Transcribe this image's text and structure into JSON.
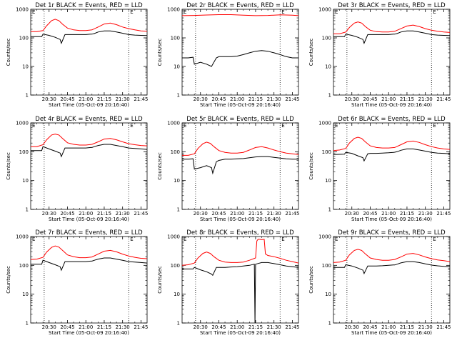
{
  "figure": {
    "ylabel": "Counts/sec",
    "xlabel": "Start Time (05-Oct-09 20:16:40)",
    "x_tick_labels": [
      "20:30",
      "20:45",
      "21:00",
      "21:15",
      "21:30",
      "21:45"
    ],
    "y_tick_labels": [
      "1",
      "10",
      "100",
      "1000"
    ],
    "marker_label": "E",
    "colors": {
      "events": "#000000",
      "lld": "#ff0000"
    }
  },
  "chart_data": [
    {
      "title": "Det 1r BLACK = Events, RED = LLD",
      "type": "line",
      "x_unit": "minutes after start",
      "xlim": [
        0,
        95
      ],
      "yscale": "log",
      "ylim": [
        1,
        1000
      ],
      "vlines": [
        11,
        80
      ],
      "series": [
        {
          "name": "Events",
          "color": "#000000",
          "x": [
            0,
            9,
            10,
            15,
            20,
            24,
            25,
            28,
            30,
            35,
            40,
            45,
            49,
            50,
            52,
            55,
            60,
            65,
            70,
            75,
            80,
            85,
            90,
            95
          ],
          "y": [
            110,
            110,
            135,
            122,
            105,
            88,
            65,
            130,
            130,
            130,
            130,
            130,
            135,
            135,
            142,
            160,
            175,
            175,
            160,
            145,
            130,
            125,
            122,
            120
          ]
        },
        {
          "name": "LLD",
          "color": "#ff0000",
          "x": [
            0,
            5,
            10,
            13,
            17,
            20,
            23,
            26,
            30,
            35,
            40,
            45,
            50,
            55,
            60,
            65,
            70,
            75,
            80,
            85,
            90,
            95
          ],
          "y": [
            165,
            165,
            180,
            265,
            400,
            450,
            400,
            300,
            220,
            190,
            180,
            180,
            190,
            240,
            305,
            330,
            290,
            240,
            210,
            190,
            175,
            170
          ]
        }
      ]
    },
    {
      "title": "Det 2r BLACK = Events, RED = LLD",
      "type": "line",
      "x_unit": "minutes after start",
      "xlim": [
        0,
        95
      ],
      "yscale": "log",
      "ylim": [
        1,
        1000
      ],
      "vlines": [
        11,
        80
      ],
      "series": [
        {
          "name": "Events",
          "color": "#000000",
          "x": [
            0,
            5,
            9,
            10,
            15,
            20,
            24,
            28,
            30,
            35,
            40,
            45,
            50,
            55,
            60,
            65,
            70,
            75,
            80,
            85,
            90,
            95
          ],
          "y": [
            20,
            20,
            21,
            12,
            14,
            12,
            10,
            20,
            22,
            22,
            22,
            23,
            26,
            30,
            34,
            36,
            34,
            30,
            26,
            22,
            20,
            20
          ]
        },
        {
          "name": "LLD",
          "color": "#ff0000",
          "x": [
            0,
            10,
            20,
            30,
            40,
            50,
            60,
            70,
            80,
            90,
            95
          ],
          "y": [
            600,
            610,
            630,
            650,
            650,
            620,
            600,
            610,
            640,
            620,
            600
          ]
        }
      ]
    },
    {
      "title": "Det 3r BLACK = Events, RED = LLD",
      "type": "line",
      "x_unit": "minutes after start",
      "xlim": [
        0,
        95
      ],
      "yscale": "log",
      "ylim": [
        1,
        1000
      ],
      "vlines": [
        11,
        80
      ],
      "series": [
        {
          "name": "Events",
          "color": "#000000",
          "x": [
            0,
            9,
            10,
            15,
            20,
            24,
            25,
            28,
            30,
            35,
            40,
            45,
            49,
            50,
            52,
            55,
            60,
            65,
            70,
            75,
            80,
            85,
            90,
            95
          ],
          "y": [
            110,
            110,
            135,
            122,
            105,
            88,
            65,
            130,
            130,
            130,
            130,
            130,
            135,
            135,
            142,
            160,
            175,
            175,
            160,
            145,
            130,
            125,
            122,
            120
          ]
        },
        {
          "name": "LLD",
          "color": "#ff0000",
          "x": [
            0,
            5,
            10,
            13,
            17,
            20,
            23,
            26,
            30,
            35,
            40,
            45,
            50,
            55,
            60,
            65,
            70,
            75,
            80,
            85,
            90,
            95
          ],
          "y": [
            140,
            140,
            160,
            230,
            330,
            360,
            330,
            250,
            185,
            165,
            160,
            160,
            170,
            210,
            260,
            280,
            250,
            210,
            185,
            170,
            160,
            155
          ]
        }
      ]
    },
    {
      "title": "Det 4r BLACK = Events, RED = LLD",
      "type": "line",
      "x_unit": "minutes after start",
      "xlim": [
        0,
        95
      ],
      "yscale": "log",
      "ylim": [
        1,
        1000
      ],
      "vlines": [
        11,
        80
      ],
      "series": [
        {
          "name": "Events",
          "color": "#000000",
          "x": [
            0,
            9,
            10,
            15,
            20,
            24,
            25,
            28,
            30,
            35,
            40,
            45,
            49,
            50,
            52,
            55,
            60,
            65,
            70,
            75,
            80,
            85,
            90,
            95
          ],
          "y": [
            110,
            110,
            150,
            125,
            105,
            90,
            68,
            135,
            135,
            135,
            135,
            135,
            140,
            140,
            150,
            165,
            180,
            180,
            165,
            150,
            135,
            130,
            125,
            120
          ]
        },
        {
          "name": "LLD",
          "color": "#ff0000",
          "x": [
            0,
            5,
            10,
            13,
            17,
            20,
            23,
            26,
            30,
            35,
            40,
            45,
            50,
            55,
            60,
            65,
            70,
            75,
            80,
            85,
            90,
            95
          ],
          "y": [
            150,
            150,
            175,
            260,
            380,
            410,
            380,
            290,
            205,
            180,
            170,
            170,
            180,
            220,
            275,
            290,
            260,
            220,
            190,
            175,
            165,
            160
          ]
        }
      ]
    },
    {
      "title": "Det 5r BLACK = Events, RED = LLD",
      "type": "line",
      "x_unit": "minutes after start",
      "xlim": [
        0,
        95
      ],
      "yscale": "log",
      "ylim": [
        1,
        1000
      ],
      "vlines": [
        11,
        80
      ],
      "series": [
        {
          "name": "Events",
          "color": "#000000",
          "x": [
            0,
            5,
            9,
            10,
            15,
            20,
            24,
            25,
            28,
            30,
            35,
            40,
            45,
            50,
            55,
            60,
            65,
            70,
            75,
            80,
            85,
            90,
            95
          ],
          "y": [
            55,
            55,
            57,
            25,
            28,
            33,
            28,
            18,
            45,
            50,
            55,
            55,
            57,
            58,
            62,
            66,
            68,
            68,
            64,
            60,
            57,
            55,
            55
          ]
        },
        {
          "name": "LLD",
          "color": "#ff0000",
          "x": [
            0,
            5,
            10,
            13,
            17,
            20,
            23,
            26,
            30,
            35,
            40,
            45,
            50,
            55,
            60,
            65,
            70,
            75,
            80,
            85,
            90,
            95
          ],
          "y": [
            75,
            75,
            85,
            130,
            190,
            215,
            195,
            150,
            110,
            95,
            90,
            90,
            95,
            115,
            140,
            150,
            135,
            115,
            100,
            90,
            85,
            80
          ]
        }
      ]
    },
    {
      "title": "Det 6r BLACK = Events, RED = LLD",
      "type": "line",
      "x_unit": "minutes after start",
      "xlim": [
        0,
        95
      ],
      "yscale": "log",
      "ylim": [
        1,
        1000
      ],
      "vlines": [
        11,
        80
      ],
      "series": [
        {
          "name": "Events",
          "color": "#000000",
          "x": [
            0,
            9,
            10,
            15,
            20,
            24,
            25,
            28,
            30,
            35,
            40,
            45,
            49,
            50,
            52,
            55,
            60,
            65,
            70,
            75,
            80,
            85,
            90,
            95
          ],
          "y": [
            80,
            82,
            95,
            88,
            72,
            62,
            48,
            85,
            88,
            88,
            90,
            92,
            95,
            96,
            100,
            112,
            125,
            125,
            115,
            105,
            95,
            90,
            88,
            85
          ]
        },
        {
          "name": "LLD",
          "color": "#ff0000",
          "x": [
            0,
            5,
            10,
            13,
            17,
            20,
            23,
            26,
            30,
            35,
            40,
            45,
            50,
            55,
            60,
            65,
            70,
            75,
            80,
            85,
            90,
            95
          ],
          "y": [
            110,
            115,
            130,
            200,
            290,
            320,
            290,
            220,
            160,
            140,
            135,
            135,
            140,
            175,
            220,
            235,
            210,
            175,
            150,
            135,
            125,
            120
          ]
        }
      ]
    },
    {
      "title": "Det 7r BLACK = Events, RED = LLD",
      "type": "line",
      "x_unit": "minutes after start",
      "xlim": [
        0,
        95
      ],
      "yscale": "log",
      "ylim": [
        1,
        1000
      ],
      "vlines": [
        11,
        80
      ],
      "series": [
        {
          "name": "Events",
          "color": "#000000",
          "x": [
            0,
            9,
            10,
            15,
            20,
            24,
            25,
            28,
            30,
            35,
            40,
            45,
            49,
            50,
            52,
            55,
            60,
            65,
            70,
            75,
            80,
            85,
            90,
            95
          ],
          "y": [
            110,
            110,
            150,
            125,
            105,
            90,
            68,
            135,
            135,
            135,
            135,
            135,
            140,
            140,
            150,
            165,
            180,
            180,
            165,
            150,
            135,
            130,
            125,
            120
          ]
        },
        {
          "name": "LLD",
          "color": "#ff0000",
          "x": [
            0,
            5,
            10,
            13,
            17,
            20,
            23,
            26,
            30,
            35,
            40,
            45,
            50,
            55,
            60,
            65,
            70,
            75,
            80,
            85,
            90,
            95
          ],
          "y": [
            160,
            165,
            190,
            290,
            420,
            470,
            430,
            330,
            230,
            200,
            185,
            185,
            195,
            245,
            310,
            330,
            295,
            245,
            210,
            190,
            175,
            170
          ]
        }
      ]
    },
    {
      "title": "Det 8r BLACK = Events, RED = LLD",
      "type": "line",
      "x_unit": "minutes after start",
      "xlim": [
        0,
        95
      ],
      "yscale": "log",
      "ylim": [
        1,
        1000
      ],
      "vlines": [
        11,
        80
      ],
      "series": [
        {
          "name": "Events",
          "color": "#000000",
          "x": [
            0,
            9,
            10,
            15,
            20,
            24,
            25,
            28,
            30,
            35,
            40,
            45,
            50,
            55,
            59,
            59.5,
            60,
            65,
            70,
            75,
            80,
            85,
            90,
            95
          ],
          "y": [
            75,
            75,
            85,
            70,
            60,
            50,
            45,
            85,
            85,
            85,
            88,
            90,
            95,
            100,
            110,
            1,
            110,
            125,
            125,
            115,
            105,
            95,
            90,
            85
          ]
        },
        {
          "name": "LLD",
          "color": "#ff0000",
          "x": [
            0,
            5,
            10,
            13,
            17,
            20,
            23,
            26,
            30,
            35,
            40,
            45,
            50,
            55,
            60,
            61,
            62,
            63,
            65,
            67,
            68,
            70,
            75,
            80,
            85,
            90,
            95
          ],
          "y": [
            100,
            105,
            120,
            180,
            260,
            290,
            260,
            200,
            150,
            130,
            125,
            125,
            130,
            150,
            180,
            700,
            800,
            800,
            780,
            800,
            250,
            220,
            200,
            175,
            150,
            135,
            120
          ]
        }
      ]
    },
    {
      "title": "Det 9r BLACK = Events, RED = LLD",
      "type": "line",
      "x_unit": "minutes after start",
      "xlim": [
        0,
        95
      ],
      "yscale": "log",
      "ylim": [
        1,
        1000
      ],
      "vlines": [
        11,
        80
      ],
      "series": [
        {
          "name": "Events",
          "color": "#000000",
          "x": [
            0,
            9,
            10,
            15,
            20,
            24,
            25,
            28,
            30,
            35,
            40,
            45,
            49,
            50,
            52,
            55,
            60,
            65,
            70,
            75,
            80,
            85,
            90,
            95
          ],
          "y": [
            85,
            85,
            105,
            95,
            80,
            68,
            52,
            95,
            95,
            95,
            97,
            100,
            103,
            103,
            110,
            122,
            135,
            135,
            125,
            112,
            102,
            96,
            92,
            90
          ]
        },
        {
          "name": "LLD",
          "color": "#ff0000",
          "x": [
            0,
            5,
            10,
            13,
            17,
            20,
            23,
            26,
            30,
            35,
            40,
            45,
            50,
            55,
            60,
            65,
            70,
            75,
            80,
            85,
            90,
            95
          ],
          "y": [
            125,
            130,
            150,
            230,
            330,
            360,
            330,
            250,
            180,
            160,
            150,
            150,
            160,
            195,
            245,
            260,
            230,
            195,
            170,
            155,
            145,
            135
          ]
        }
      ]
    }
  ]
}
